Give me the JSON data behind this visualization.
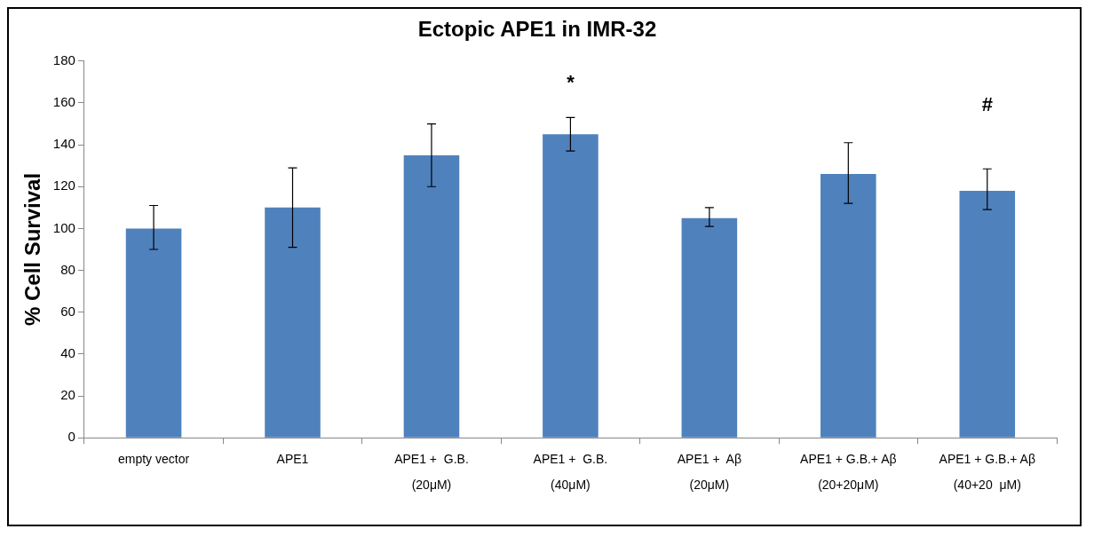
{
  "chart_data": {
    "type": "bar",
    "title": "Ectopic APE1 in IMR-32",
    "ylabel": "% Cell Survival",
    "categories": [
      "empty vector",
      "APE1",
      "APE1 +  G.B.\n(20μM)",
      "APE1 +  G.B.\n(40μM)",
      "APE1 +  Aβ\n(20μM)",
      "APE1 + G.B.+ Aβ\n(20+20μM)",
      "APE1 + G.B.+ Aβ\n(40+20  μM)"
    ],
    "values": [
      100,
      110,
      135,
      145,
      105,
      126,
      118
    ],
    "errors": [
      [
        90,
        111
      ],
      [
        91,
        129
      ],
      [
        120,
        150
      ],
      [
        137,
        153
      ],
      [
        101,
        110
      ],
      [
        112,
        141
      ],
      [
        109,
        128.5
      ]
    ],
    "color": "#4f81bd",
    "ylim": [
      0,
      180
    ],
    "yticks": [
      0,
      20,
      40,
      60,
      80,
      100,
      120,
      140,
      160,
      180
    ],
    "grid": false,
    "legend": false,
    "annotations": [
      "*",
      "#"
    ]
  }
}
